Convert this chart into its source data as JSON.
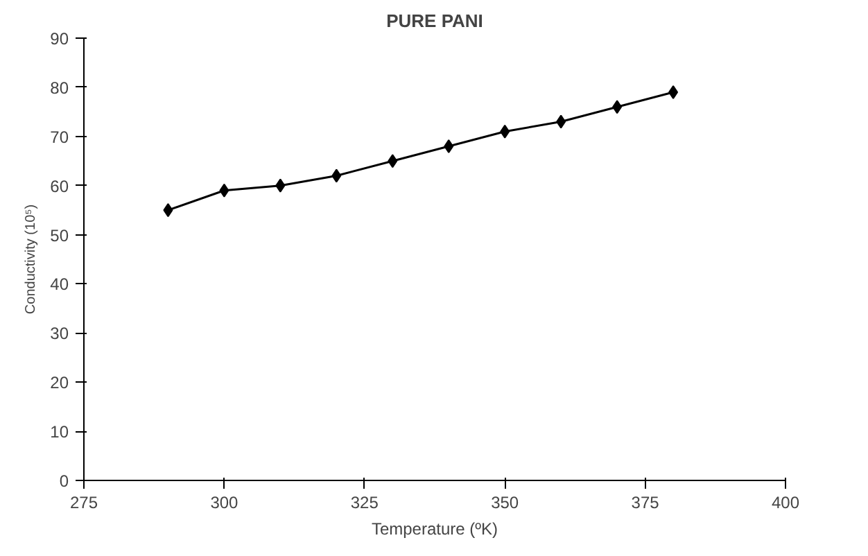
{
  "chart_data": {
    "type": "line",
    "title": "PURE PANI",
    "xlabel": "Temperature (ºK)",
    "ylabel": "Conductivity (10⁵)",
    "x": [
      290,
      300,
      310,
      320,
      330,
      340,
      350,
      360,
      370,
      380
    ],
    "series": [
      {
        "color": "#000000",
        "values": [
          55,
          59,
          60,
          62,
          65,
          68,
          71,
          73,
          76,
          79
        ]
      }
    ],
    "xlim": [
      275,
      400
    ],
    "xticks": [
      275,
      300,
      325,
      350,
      375,
      400
    ],
    "ylim": [
      0,
      90
    ],
    "yticks": [
      0,
      10,
      20,
      30,
      40,
      50,
      60,
      70,
      80,
      90
    ],
    "grid": false,
    "marker": "diamond",
    "line_style": "solid"
  }
}
